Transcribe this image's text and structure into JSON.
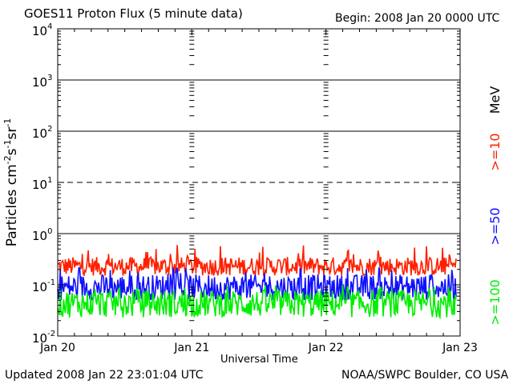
{
  "chart_data": {
    "type": "line",
    "title": "GOES11 Proton Flux (5 minute data)",
    "begin_label": "Begin: 2008 Jan 20 0000 UTC",
    "xlabel": "Universal Time",
    "ylabel_main": "Particles cm",
    "ylabel_exp1": "-2",
    "ylabel_mid1": "s",
    "ylabel_exp2": "-1",
    "ylabel_mid2": "sr",
    "ylabel_exp3": "-1",
    "x_ticks": [
      "Jan 20",
      "Jan 21",
      "Jan 22",
      "Jan 23"
    ],
    "y_scale": "log",
    "ylim": [
      0.01,
      10000
    ],
    "y_ticks": [
      {
        "base": "10",
        "exp": "-2"
      },
      {
        "base": "10",
        "exp": "-1"
      },
      {
        "base": "10",
        "exp": "0"
      },
      {
        "base": "10",
        "exp": "1"
      },
      {
        "base": "10",
        "exp": "2"
      },
      {
        "base": "10",
        "exp": "3"
      },
      {
        "base": "10",
        "exp": "4"
      }
    ],
    "thresholds": [
      {
        "value": 1,
        "style": "solid"
      },
      {
        "value": 10,
        "style": "dashed"
      },
      {
        "value": 100,
        "style": "solid"
      },
      {
        "value": 1000,
        "style": "solid"
      }
    ],
    "series": [
      {
        "name": ">=10",
        "color": "#ff2000",
        "low": 0.15,
        "high": 0.35,
        "peak": 0.6
      },
      {
        "name": ">=50",
        "color": "#1010ff",
        "low": 0.05,
        "high": 0.16,
        "peak": 0.22
      },
      {
        "name": ">=100",
        "color": "#00ee00",
        "low": 0.023,
        "high": 0.08,
        "peak": 0.1
      }
    ],
    "units_label": "MeV"
  },
  "footer": {
    "updated": "Updated 2008 Jan 22 23:01:04 UTC",
    "credit": "NOAA/SWPC Boulder, CO USA"
  }
}
